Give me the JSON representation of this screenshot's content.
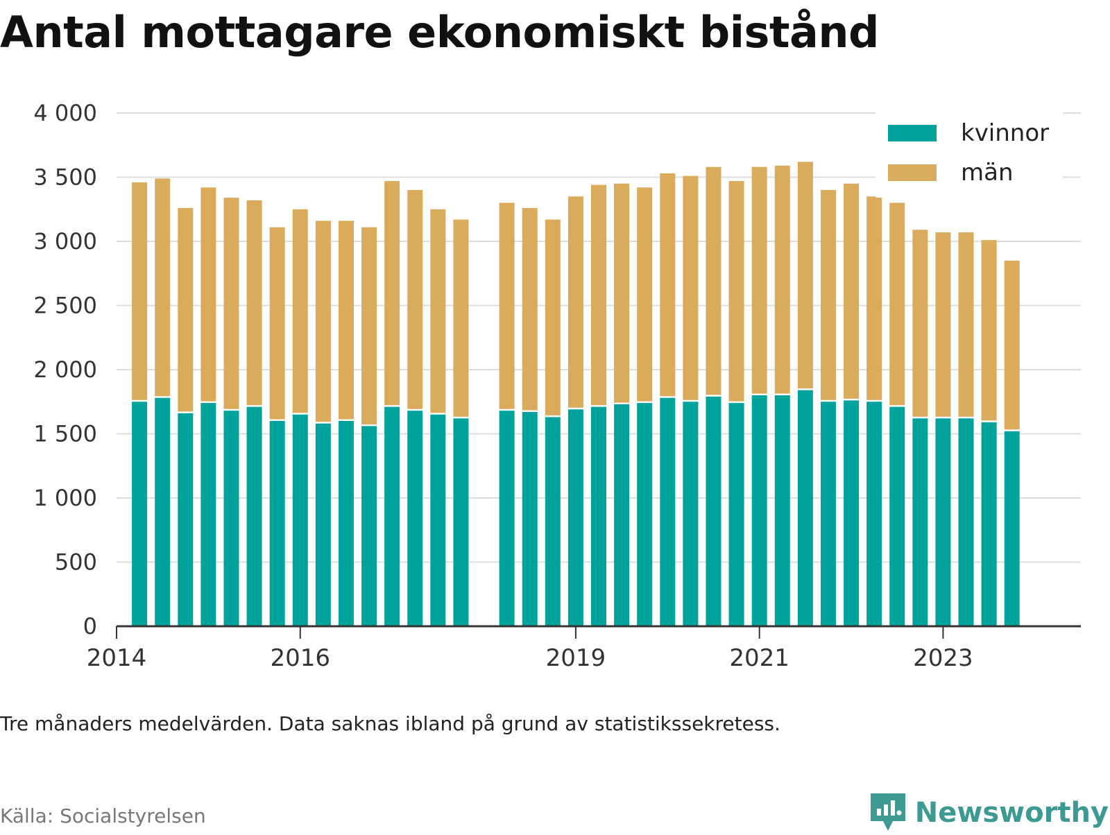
{
  "title": "Antal mottagare ekonomiskt bistånd",
  "note": "Tre månaders medelvärden. Data saknas ibland på grund av statistikssekretess.",
  "source": "Källa: Socialstyrelsen",
  "brand": "Newsworthy",
  "colors": {
    "kvinnor": "#00a39b",
    "man": "#d9ab5b",
    "grid": "#dddddd",
    "axis": "#333333"
  },
  "chart_data": {
    "type": "bar",
    "stacked": true,
    "title": "Antal mottagare ekonomiskt bistånd",
    "xlabel": "",
    "ylabel": "",
    "ylim": [
      0,
      4000
    ],
    "yticks": [
      0,
      500,
      1000,
      1500,
      2000,
      2500,
      3000,
      3500,
      4000
    ],
    "ytick_labels": [
      "0",
      "500",
      "1 000",
      "1 500",
      "2 000",
      "2 500",
      "3 000",
      "3 500",
      "4 000"
    ],
    "xlim": [
      2014,
      2024.5
    ],
    "xticks": [
      2014,
      2016,
      2019,
      2021,
      2023
    ],
    "xtick_labels": [
      "2014",
      "2016",
      "2019",
      "2021",
      "2023"
    ],
    "grid": true,
    "legend_position": "top-right",
    "x": [
      2014.25,
      2014.5,
      2014.75,
      2015.0,
      2015.25,
      2015.5,
      2015.75,
      2016.0,
      2016.25,
      2016.5,
      2016.75,
      2017.0,
      2017.25,
      2017.5,
      2017.75,
      2018.25,
      2018.5,
      2018.75,
      2019.0,
      2019.25,
      2019.5,
      2019.75,
      2020.0,
      2020.25,
      2020.5,
      2020.75,
      2021.0,
      2021.25,
      2021.5,
      2021.75,
      2022.0,
      2022.25,
      2022.5,
      2022.75,
      2023.0,
      2023.25,
      2023.5,
      2023.75
    ],
    "series": [
      {
        "name": "kvinnor",
        "values": [
          1750,
          1780,
          1660,
          1740,
          1680,
          1710,
          1600,
          1650,
          1580,
          1600,
          1560,
          1710,
          1680,
          1650,
          1620,
          1680,
          1670,
          1630,
          1690,
          1710,
          1730,
          1740,
          1780,
          1750,
          1790,
          1740,
          1800,
          1800,
          1840,
          1750,
          1760,
          1750,
          1710,
          1620,
          1620,
          1620,
          1590,
          1520
        ]
      },
      {
        "name": "män",
        "values": [
          1710,
          1710,
          1600,
          1680,
          1660,
          1610,
          1510,
          1600,
          1580,
          1560,
          1550,
          1760,
          1720,
          1600,
          1550,
          1620,
          1590,
          1540,
          1660,
          1730,
          1720,
          1680,
          1750,
          1760,
          1790,
          1730,
          1780,
          1790,
          1780,
          1650,
          1690,
          1600,
          1590,
          1470,
          1450,
          1450,
          1420,
          1330
        ]
      }
    ]
  }
}
